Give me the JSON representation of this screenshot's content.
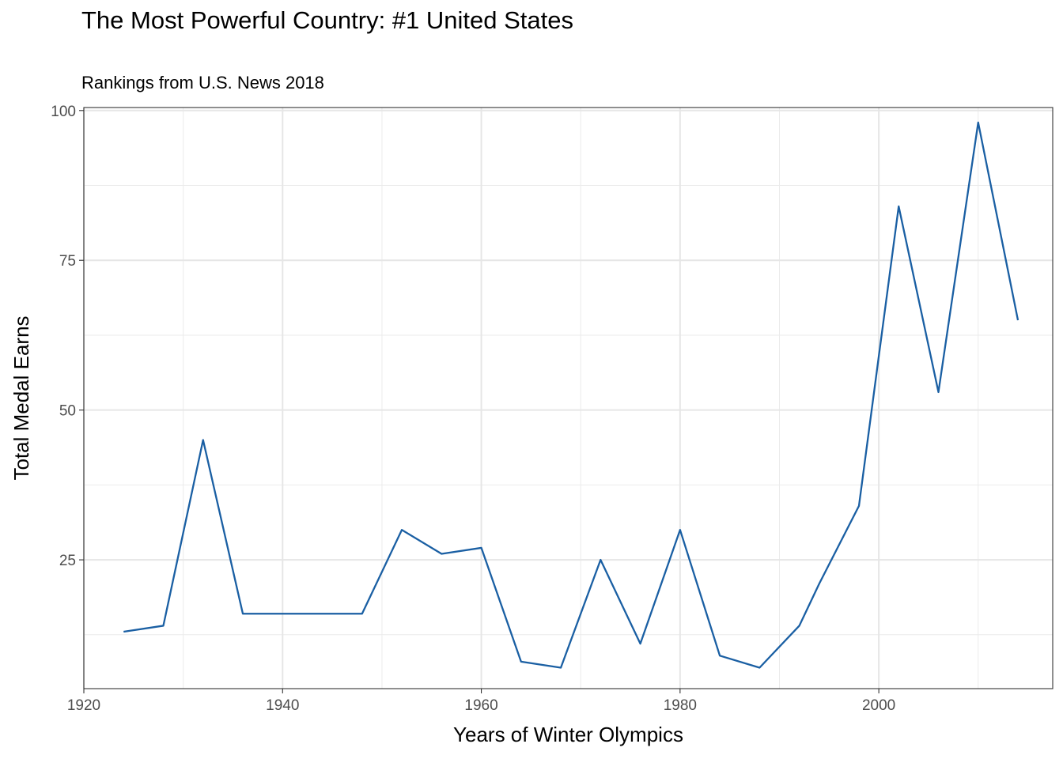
{
  "chart_data": {
    "type": "line",
    "title": "The Most Powerful Country: #1 United States",
    "subtitle": "Rankings from U.S. News 2018",
    "xlabel": "Years of Winter Olympics",
    "ylabel": "Total Medal Earns",
    "xlim": [
      1920,
      2017.5
    ],
    "ylim": [
      3.5,
      100.5
    ],
    "x_ticks": [
      1920,
      1940,
      1960,
      1980,
      2000
    ],
    "x_tick_labels": [
      "1920",
      "1940",
      "1960",
      "1980",
      "2000"
    ],
    "x_minor_ticks": [
      1930,
      1950,
      1970,
      1990,
      2010
    ],
    "y_ticks": [
      25,
      50,
      75,
      100
    ],
    "y_tick_labels": [
      "25",
      "50",
      "75",
      "100"
    ],
    "y_minor_ticks": [
      12.5,
      37.5,
      62.5,
      87.5
    ],
    "grid": true,
    "line_color": "#1a5fa3",
    "series": [
      {
        "x": [
          1924,
          1928,
          1932,
          1936,
          1948,
          1952,
          1956,
          1960,
          1964,
          1968,
          1972,
          1976,
          1980,
          1984,
          1988,
          1992,
          1994,
          1998,
          2002,
          2006,
          2010,
          2014
        ],
        "y": [
          13,
          14,
          45,
          16,
          16,
          30,
          26,
          27,
          8,
          7,
          25,
          11,
          30,
          9,
          7,
          14,
          21,
          34,
          84,
          53,
          98,
          65
        ]
      }
    ]
  }
}
